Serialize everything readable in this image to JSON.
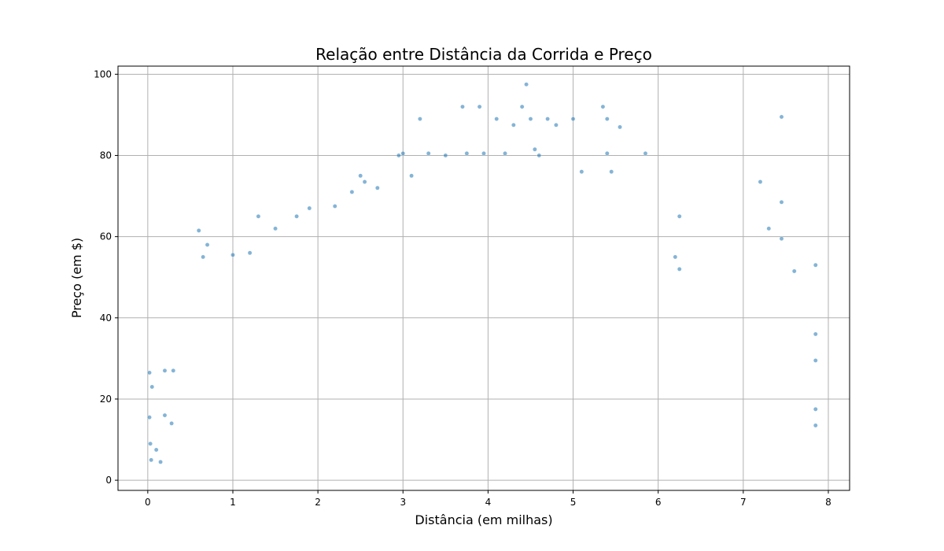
{
  "chart_data": {
    "type": "scatter",
    "title": "Relação entre Distância da Corrida e Preço",
    "xlabel": "Distância (em milhas)",
    "ylabel": "Preço (em $)",
    "xlim": [
      -0.35,
      8.25
    ],
    "ylim": [
      -2.5,
      102
    ],
    "xticks": [
      0,
      1,
      2,
      3,
      4,
      5,
      6,
      7,
      8
    ],
    "yticks": [
      0,
      20,
      40,
      60,
      80,
      100
    ],
    "grid": true,
    "point_color": "#1f77b4",
    "point_alpha": 0.55,
    "series": [
      {
        "points": [
          [
            0.02,
            26.5
          ],
          [
            0.02,
            15.5
          ],
          [
            0.03,
            9.0
          ],
          [
            0.04,
            5.0
          ],
          [
            0.05,
            23.0
          ],
          [
            0.1,
            7.5
          ],
          [
            0.15,
            4.5
          ],
          [
            0.2,
            27.0
          ],
          [
            0.2,
            16.0
          ],
          [
            0.28,
            14.0
          ],
          [
            0.3,
            27.0
          ],
          [
            0.6,
            61.5
          ],
          [
            0.65,
            55.0
          ],
          [
            0.7,
            58.0
          ],
          [
            1.0,
            55.5
          ],
          [
            1.2,
            56.0
          ],
          [
            1.3,
            65.0
          ],
          [
            1.5,
            62.0
          ],
          [
            1.75,
            65.0
          ],
          [
            1.9,
            67.0
          ],
          [
            2.2,
            67.5
          ],
          [
            2.4,
            71.0
          ],
          [
            2.5,
            75.0
          ],
          [
            2.55,
            73.5
          ],
          [
            2.7,
            72.0
          ],
          [
            2.95,
            80.0
          ],
          [
            3.0,
            80.5
          ],
          [
            3.1,
            75.0
          ],
          [
            3.2,
            89.0
          ],
          [
            3.3,
            80.5
          ],
          [
            3.5,
            80.0
          ],
          [
            3.7,
            92.0
          ],
          [
            3.75,
            80.5
          ],
          [
            3.9,
            92.0
          ],
          [
            3.95,
            80.5
          ],
          [
            4.1,
            89.0
          ],
          [
            4.2,
            80.5
          ],
          [
            4.3,
            87.5
          ],
          [
            4.4,
            92.0
          ],
          [
            4.45,
            97.5
          ],
          [
            4.5,
            89.0
          ],
          [
            4.55,
            81.5
          ],
          [
            4.6,
            80.0
          ],
          [
            4.7,
            89.0
          ],
          [
            4.8,
            87.5
          ],
          [
            5.0,
            89.0
          ],
          [
            5.1,
            76.0
          ],
          [
            5.35,
            92.0
          ],
          [
            5.4,
            89.0
          ],
          [
            5.45,
            76.0
          ],
          [
            5.4,
            80.5
          ],
          [
            5.55,
            87.0
          ],
          [
            5.85,
            80.5
          ],
          [
            6.25,
            65.0
          ],
          [
            6.25,
            52.0
          ],
          [
            6.2,
            55.0
          ],
          [
            7.2,
            73.5
          ],
          [
            7.3,
            62.0
          ],
          [
            7.45,
            68.5
          ],
          [
            7.45,
            89.5
          ],
          [
            7.45,
            59.5
          ],
          [
            7.6,
            51.5
          ],
          [
            7.85,
            53.0
          ],
          [
            7.85,
            36.0
          ],
          [
            7.85,
            29.5
          ],
          [
            7.85,
            17.5
          ],
          [
            7.85,
            13.5
          ]
        ]
      }
    ]
  }
}
